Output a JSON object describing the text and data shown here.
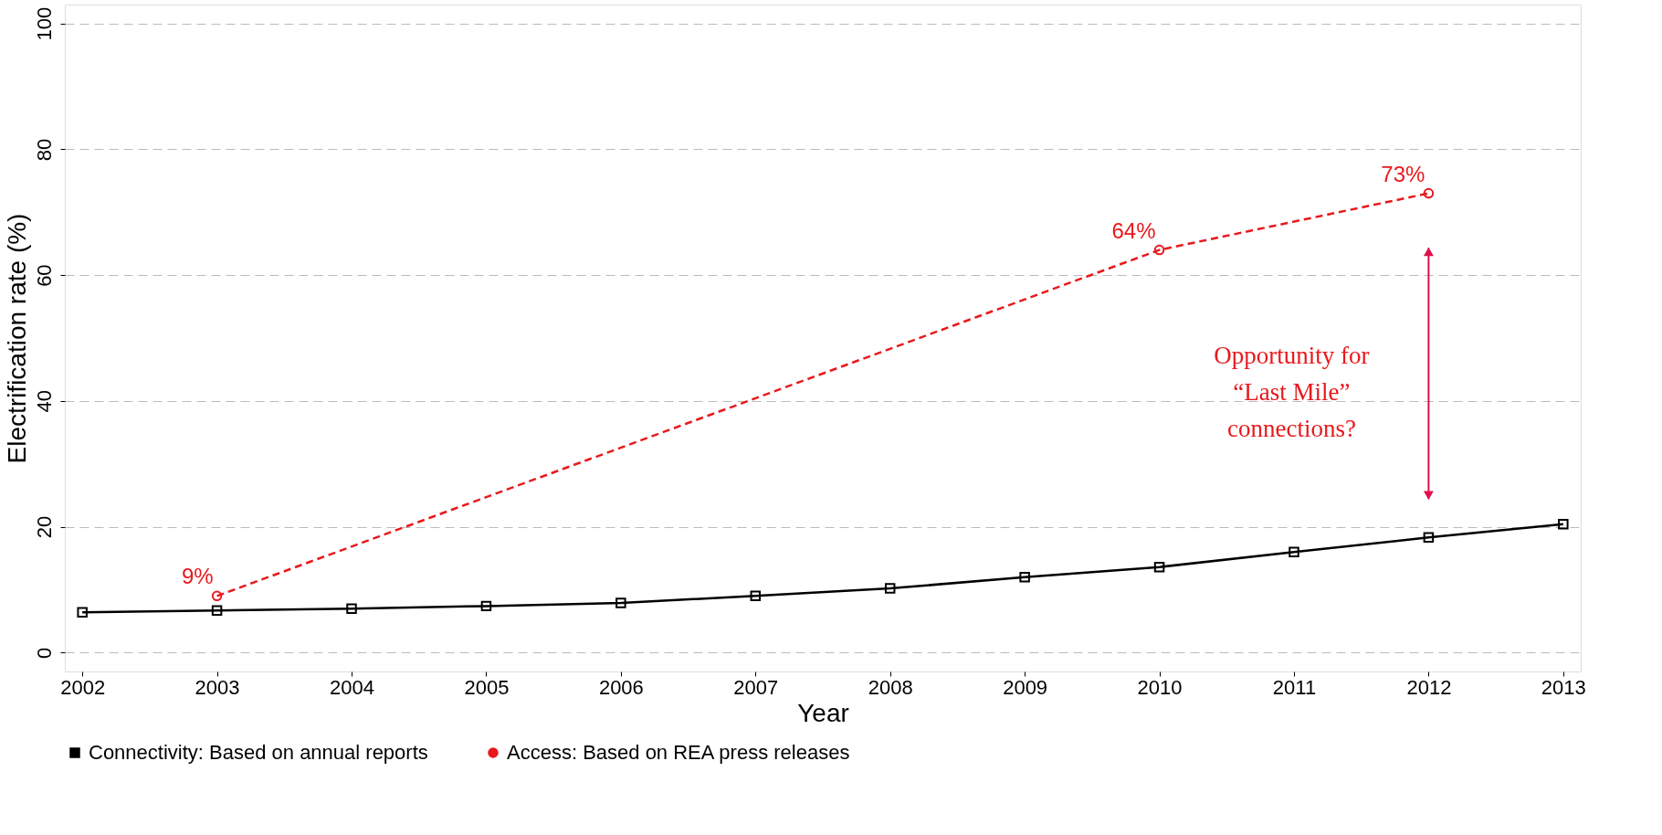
{
  "chart_data": {
    "type": "line",
    "xlabel": "Year",
    "ylabel": "Electrification rate (%)",
    "x": [
      2002,
      2003,
      2004,
      2005,
      2006,
      2007,
      2008,
      2009,
      2010,
      2011,
      2012,
      2013
    ],
    "xlim": [
      2001.87,
      2013.13
    ],
    "xticks": [
      2002,
      2003,
      2004,
      2005,
      2006,
      2007,
      2008,
      2009,
      2010,
      2011,
      2012,
      2013
    ],
    "ylim": [
      -3,
      103
    ],
    "yticks": [
      0,
      20,
      40,
      60,
      80,
      100
    ],
    "grid": "y",
    "legend": "bottom",
    "series": [
      {
        "name": "Connectivity: Based on annual reports",
        "color": "#000000",
        "marker": "square",
        "line_style": "solid",
        "values": [
          6.4,
          6.7,
          7.0,
          7.4,
          7.9,
          9.0,
          10.2,
          12.0,
          13.6,
          16.0,
          18.3,
          20.4
        ]
      },
      {
        "name": "Access: Based on REA press releases",
        "color": "#e8191c",
        "marker": "circle",
        "line_style": "dashed",
        "x": [
          2003,
          2010,
          2012
        ],
        "values": [
          9,
          64,
          73
        ],
        "value_labels": [
          "9%",
          "64%",
          "73%"
        ]
      }
    ],
    "annotations": [
      "Opportunity for\n“Last Mile”\nconnections?"
    ]
  }
}
